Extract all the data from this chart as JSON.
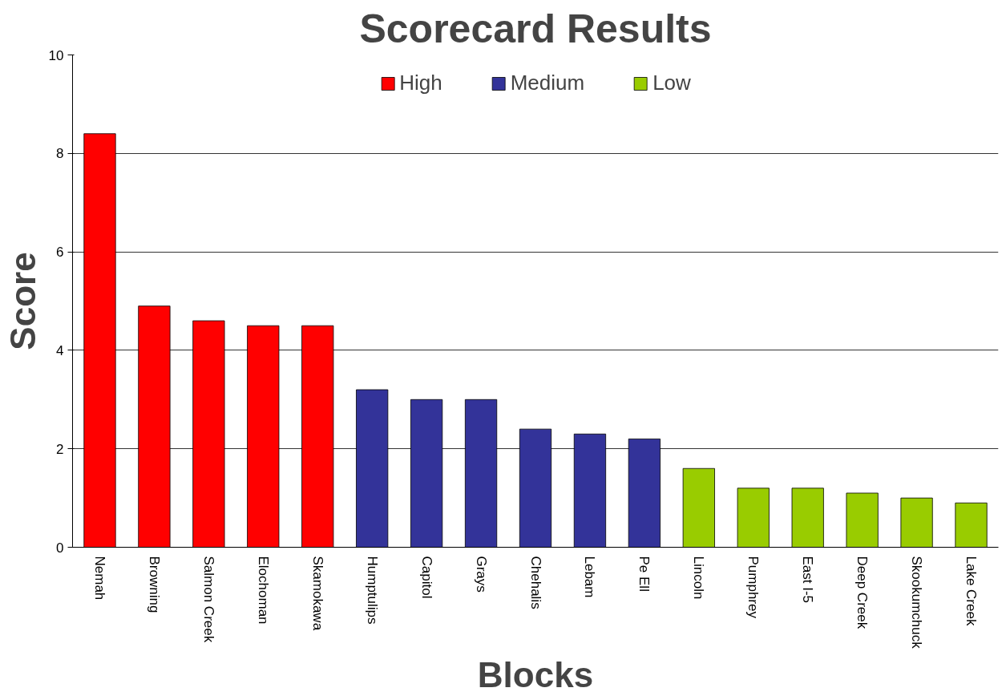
{
  "chart_data": {
    "type": "bar",
    "title": "Scorecard Results",
    "xlabel": "Blocks",
    "ylabel": "Score",
    "categories": [
      "Nemah",
      "Browning",
      "Salmon Creek",
      "Elochoman",
      "Skamokawa",
      "Humptulips",
      "Capitol",
      "Grays",
      "Chehalis",
      "Lebam",
      "Pe Ell",
      "Lincoln",
      "Pumphrey",
      "East I-5",
      "Deep Creek",
      "Skookumchuck",
      "Lake Creek"
    ],
    "series": [
      {
        "name": "High",
        "color": "#ff0000",
        "values": [
          8.4,
          4.9,
          4.6,
          4.5,
          4.5,
          null,
          null,
          null,
          null,
          null,
          null,
          null,
          null,
          null,
          null,
          null,
          null
        ]
      },
      {
        "name": "Medium",
        "color": "#333399",
        "values": [
          null,
          null,
          null,
          null,
          null,
          3.2,
          3.0,
          3.0,
          2.4,
          2.3,
          2.2,
          null,
          null,
          null,
          null,
          null,
          null
        ]
      },
      {
        "name": "Low",
        "color": "#99cc00",
        "values": [
          null,
          null,
          null,
          null,
          null,
          null,
          null,
          null,
          null,
          null,
          null,
          1.6,
          1.2,
          1.2,
          1.1,
          1.0,
          0.9
        ]
      }
    ],
    "ylim": [
      0,
      10
    ],
    "yticks": [
      0,
      2,
      4,
      6,
      8,
      10
    ],
    "grid": "y",
    "legend": "top"
  }
}
